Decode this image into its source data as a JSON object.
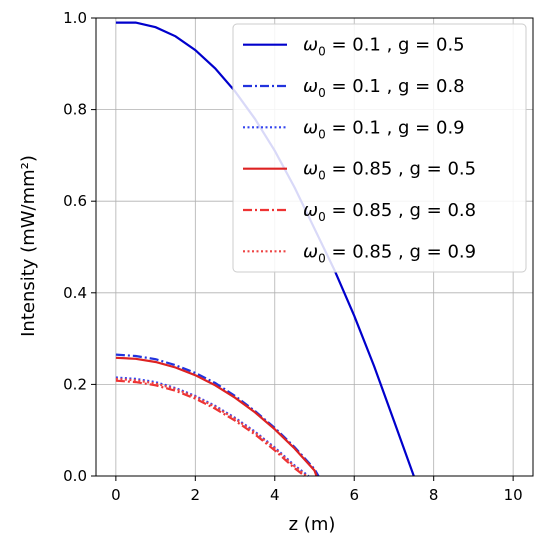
{
  "chart_data": {
    "type": "line",
    "xlabel": "z (m)",
    "ylabel": "Intensity (mW/mm²)",
    "xlim": [
      -0.5,
      10.5
    ],
    "ylim": [
      0,
      1.0
    ],
    "xticks": [
      0,
      2,
      4,
      6,
      8,
      10
    ],
    "yticks": [
      0.0,
      0.2,
      0.4,
      0.6,
      0.8,
      1.0
    ],
    "xtick_labels": [
      "0",
      "2",
      "4",
      "6",
      "8",
      "10"
    ],
    "ytick_labels": [
      "0.0",
      "0.2",
      "0.4",
      "0.6",
      "0.8",
      "1.0"
    ],
    "grid": true,
    "legend_position": "top-right",
    "series": [
      {
        "omega": "0.1",
        "g": "0.5",
        "color": "#0000cc",
        "style": "solid",
        "x": [
          0,
          0.5,
          1,
          1.5,
          2,
          2.5,
          3,
          3.5,
          4,
          4.5,
          5,
          5.5,
          6,
          6.5,
          7,
          7.5
        ],
        "y": [
          0.99,
          0.99,
          0.98,
          0.96,
          0.93,
          0.89,
          0.84,
          0.78,
          0.71,
          0.63,
          0.54,
          0.45,
          0.35,
          0.24,
          0.12,
          0.0
        ]
      },
      {
        "omega": "0.1",
        "g": "0.8",
        "color": "#2233dd",
        "style": "dashdot",
        "x": [
          0,
          0.5,
          1,
          1.5,
          2,
          2.5,
          3,
          3.5,
          4,
          4.5,
          5,
          5.1
        ],
        "y": [
          0.265,
          0.262,
          0.255,
          0.242,
          0.225,
          0.203,
          0.175,
          0.142,
          0.105,
          0.063,
          0.015,
          0.0
        ]
      },
      {
        "omega": "0.1",
        "g": "0.9",
        "color": "#3344ee",
        "style": "dotted",
        "x": [
          0,
          0.5,
          1,
          1.5,
          2,
          2.5,
          3,
          3.5,
          4,
          4.5,
          4.85
        ],
        "y": [
          0.215,
          0.212,
          0.205,
          0.192,
          0.175,
          0.153,
          0.127,
          0.097,
          0.062,
          0.023,
          0.0
        ]
      },
      {
        "omega": "0.85",
        "g": "0.5",
        "color": "#dd2222",
        "style": "solid",
        "x": [
          0,
          0.5,
          1,
          1.5,
          2,
          2.5,
          3,
          3.5,
          4,
          4.5,
          5,
          5.05
        ],
        "y": [
          0.258,
          0.256,
          0.249,
          0.237,
          0.22,
          0.198,
          0.171,
          0.139,
          0.102,
          0.06,
          0.012,
          0.0
        ]
      },
      {
        "omega": "0.85",
        "g": "0.8",
        "color": "#ee3333",
        "style": "dashdot",
        "x": [
          0,
          0.5,
          1,
          1.5,
          2,
          2.5,
          3,
          3.5,
          4,
          4.5,
          4.75
        ],
        "y": [
          0.208,
          0.205,
          0.198,
          0.186,
          0.169,
          0.147,
          0.121,
          0.091,
          0.056,
          0.017,
          0.0
        ]
      },
      {
        "omega": "0.85",
        "g": "0.9",
        "color": "#ee4444",
        "style": "dotted",
        "x": [
          0,
          0.5,
          1,
          1.5,
          2,
          2.5,
          3,
          3.5,
          4,
          4.5,
          4.8
        ],
        "y": [
          0.212,
          0.209,
          0.202,
          0.19,
          0.173,
          0.151,
          0.125,
          0.095,
          0.06,
          0.021,
          0.0
        ]
      }
    ]
  }
}
